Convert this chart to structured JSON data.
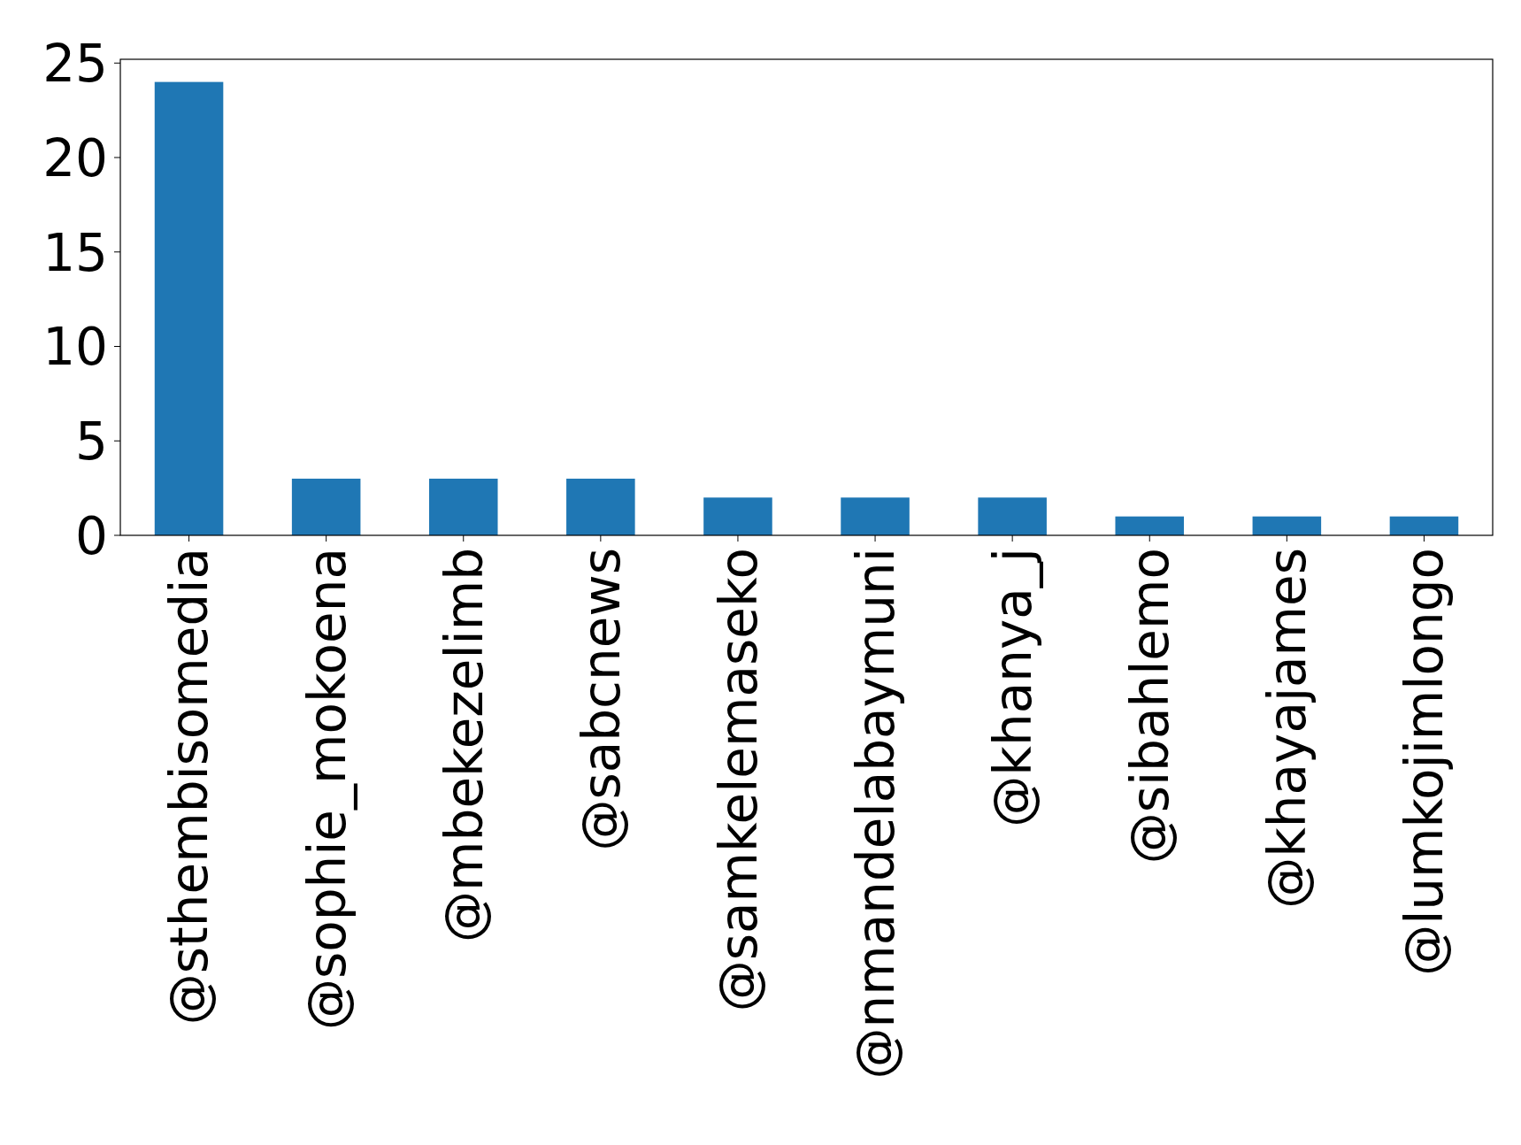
{
  "chart_data": {
    "type": "bar",
    "categories": [
      "@sthembisomedia",
      "@sophie_mokoena",
      "@mbekezelimb",
      "@sabcnews",
      "@samkelemaseko",
      "@nmandelabaymuni",
      "@khanya_j",
      "@sibahlemo",
      "@khayajames",
      "@lumkojimlongo"
    ],
    "values": [
      24,
      3,
      3,
      3,
      2,
      2,
      2,
      1,
      1,
      1
    ],
    "color": "#1f77b4",
    "ylim": [
      0,
      25.2
    ],
    "yticks": [
      0,
      5,
      10,
      15,
      20,
      25
    ],
    "grid": false
  }
}
